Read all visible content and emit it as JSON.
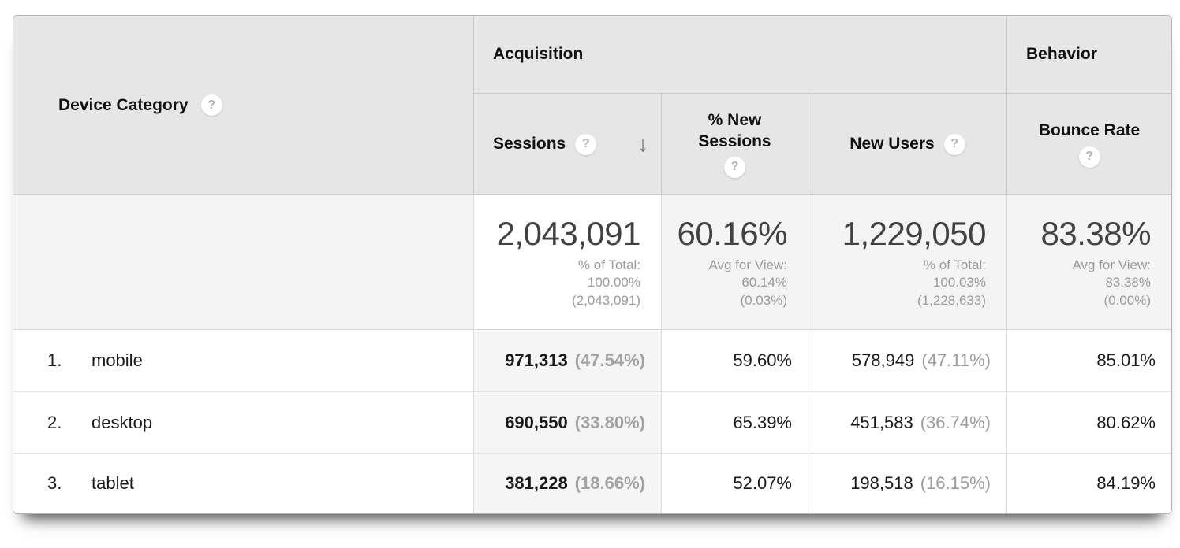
{
  "colors": {
    "header-bg": "#e6e6e6",
    "header-border": "#c9c9c9",
    "card-border": "#b3b3b3",
    "cell-border": "#dcdcdc",
    "row-border": "#e2e2e2",
    "totals-bg": "#f4f4f4",
    "highlight-bg": "#f5f5f5",
    "totals-value": "#424242",
    "text-secondary": "#9b9b9b",
    "icon-gray": "#6b6b6b"
  },
  "icons": {
    "help": "?",
    "sort_desc": "↓"
  },
  "table": {
    "dimension": {
      "label": "Device Category"
    },
    "groups": {
      "acquisition": "Acquisition",
      "behavior": "Behavior"
    },
    "columns": {
      "sessions": "Sessions",
      "new_sessions_pct": "% New\nSessions",
      "new_users": "New Users",
      "bounce_rate": "Bounce Rate"
    },
    "totals": {
      "sessions_value": "2,043,091",
      "sessions_note": "% of Total:\n100.00%\n(2,043,091)",
      "new_sessions_value": "60.16%",
      "new_sessions_note": "Avg for View:\n60.14%\n(0.03%)",
      "new_users_value": "1,229,050",
      "new_users_note": "% of Total:\n100.03%\n(1,228,633)",
      "bounce_value": "83.38%",
      "bounce_note": "Avg for View:\n83.38%\n(0.00%)"
    },
    "rows": [
      {
        "rank": "1.",
        "device": "mobile",
        "sessions": "971,313",
        "sessions_share": "(47.54%)",
        "new_sessions": "59.60%",
        "new_users": "578,949",
        "new_users_share": "(47.11%)",
        "bounce": "85.01%"
      },
      {
        "rank": "2.",
        "device": "desktop",
        "sessions": "690,550",
        "sessions_share": "(33.80%)",
        "new_sessions": "65.39%",
        "new_users": "451,583",
        "new_users_share": "(36.74%)",
        "bounce": "80.62%"
      },
      {
        "rank": "3.",
        "device": "tablet",
        "sessions": "381,228",
        "sessions_share": "(18.66%)",
        "new_sessions": "52.07%",
        "new_users": "198,518",
        "new_users_share": "(16.15%)",
        "bounce": "84.19%"
      }
    ]
  }
}
